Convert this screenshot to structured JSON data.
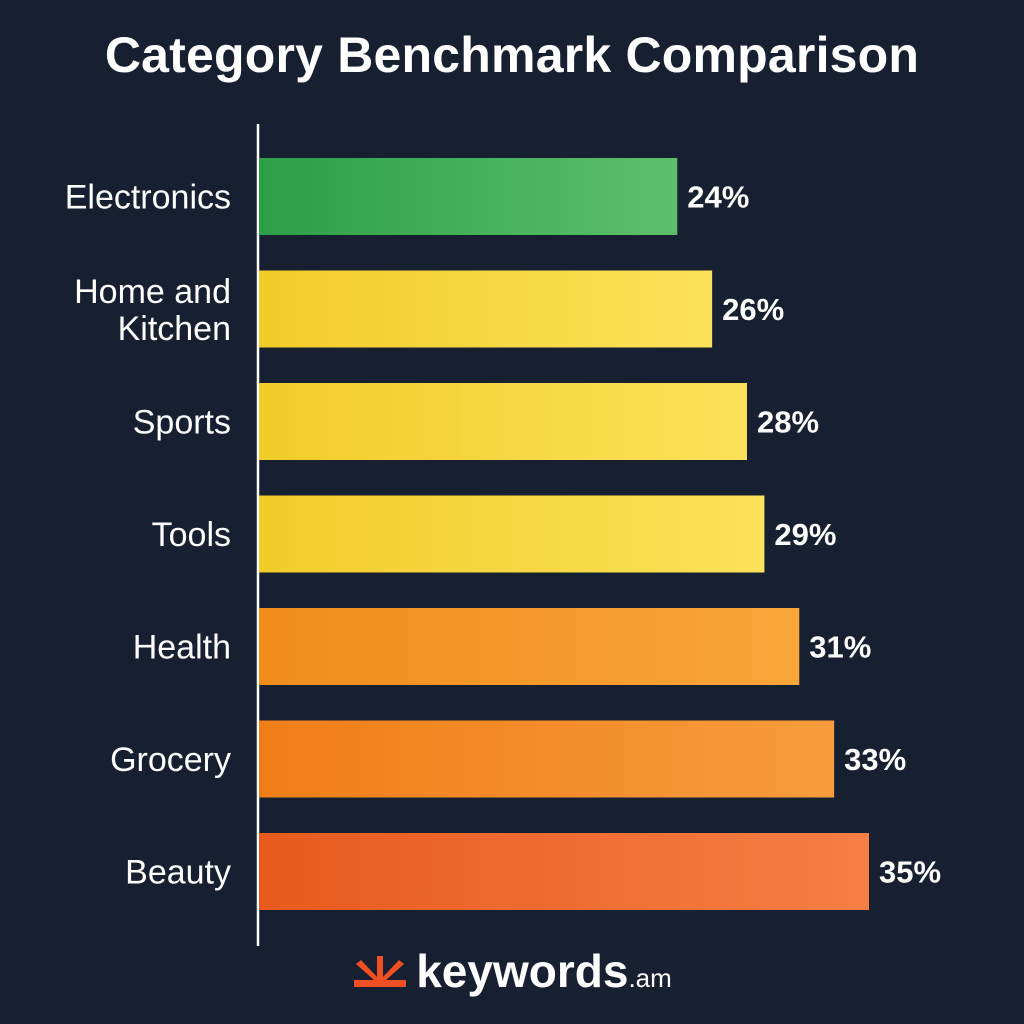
{
  "chart_data": {
    "type": "bar",
    "orientation": "horizontal",
    "title": "Category Benchmark Comparison",
    "categories": [
      "Electronics",
      "Home and Kitchen",
      "Sports",
      "Tools",
      "Health",
      "Grocery",
      "Beauty"
    ],
    "values": [
      24,
      26,
      28,
      29,
      31,
      33,
      35
    ],
    "value_labels": [
      "24%",
      "26%",
      "28%",
      "29%",
      "31%",
      "33%",
      "35%"
    ],
    "unit": "%",
    "xlim": [
      0,
      35
    ],
    "grid": false,
    "colors": [
      [
        "#2e9e48",
        "#5cc06a"
      ],
      [
        "#f2cc28",
        "#fce25a"
      ],
      [
        "#f2cc28",
        "#fce25a"
      ],
      [
        "#f2cc28",
        "#fce25a"
      ],
      [
        "#f28c1a",
        "#f8a63a"
      ],
      [
        "#f07e18",
        "#f79c3c"
      ],
      [
        "#e85a1e",
        "#f57f44"
      ]
    ],
    "background": "#172030"
  },
  "brand": {
    "name": "keywords",
    "suffix": ".am",
    "icon": "keywords-logo-icon",
    "accent": "#f04e23"
  }
}
